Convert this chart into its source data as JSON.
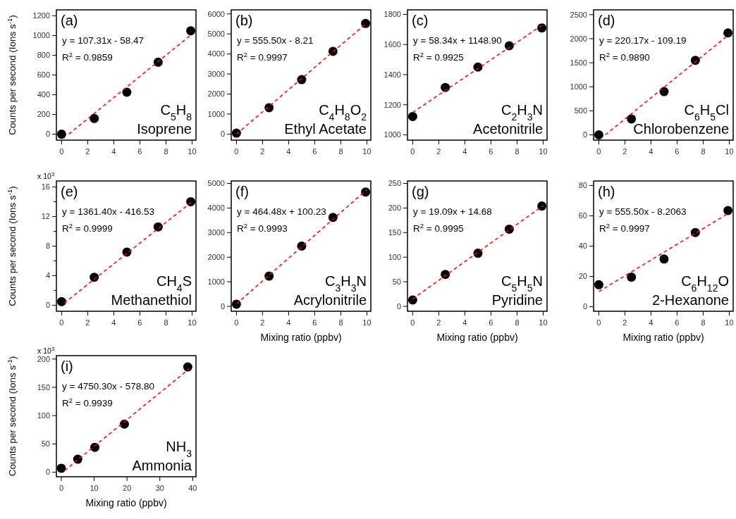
{
  "chart_data": [
    {
      "type": "scatter",
      "ylabel": "Counts per second (Ions s$^{-1}$)",
      "xlim": [
        -0.4,
        10.3
      ],
      "xticks": [
        0,
        2,
        4,
        6,
        8,
        10
      ],
      "ylim": [
        -60,
        1260
      ],
      "yticks": [
        0,
        200,
        400,
        600,
        800,
        1000,
        1200
      ],
      "annotations": [
        "(a)",
        "y = 107.31x - 58.47",
        "R$^{2}$ = 0.9859",
        "C$_{5}$H$_{8}$",
        "Isoprene"
      ],
      "series": [
        {
          "type": "scatter",
          "marker": "circle",
          "color": "#000000",
          "x": [
            0,
            2.5,
            5,
            7.4,
            9.9
          ],
          "values": [
            0,
            160,
            425,
            730,
            1048
          ]
        },
        {
          "type": "line",
          "line_style": "dashed",
          "color": "#ff0000",
          "x": [
            0.55,
            10
          ],
          "values": [
            1,
            1015
          ]
        }
      ]
    },
    {
      "type": "scatter",
      "xlim": [
        -0.4,
        10.3
      ],
      "xticks": [
        0,
        2,
        4,
        6,
        8,
        10
      ],
      "ylim": [
        -300,
        6200
      ],
      "yticks": [
        0,
        1000,
        2000,
        3000,
        4000,
        5000,
        6000
      ],
      "annotations": [
        "(b)",
        "y = 555.50x - 8.21",
        "R$^{2}$ = 0.9997",
        "C$_{4}$H$_{8}$O$_{2}$",
        "Ethyl Acetate"
      ],
      "series": [
        {
          "type": "scatter",
          "marker": "circle",
          "color": "#000000",
          "x": [
            0,
            2.5,
            5,
            7.4,
            9.9
          ],
          "values": [
            50,
            1320,
            2720,
            4130,
            5520
          ]
        },
        {
          "type": "line",
          "line_style": "dashed",
          "color": "#ff0000",
          "x": [
            0,
            10
          ],
          "values": [
            0,
            5550
          ]
        }
      ]
    },
    {
      "type": "scatter",
      "xlim": [
        -0.4,
        10.3
      ],
      "xticks": [
        0,
        2,
        4,
        6,
        8,
        10
      ],
      "ylim": [
        965,
        1830
      ],
      "yticks": [
        1000,
        1200,
        1400,
        1600,
        1800
      ],
      "annotations": [
        "(c)",
        "y = 58.34x + 1148.90",
        "R$^{2}$ = 0.9925",
        "C$_{2}$H$_{3}$N",
        "Acetonitrile"
      ],
      "series": [
        {
          "type": "scatter",
          "marker": "circle",
          "color": "#000000",
          "x": [
            0,
            2.5,
            5,
            7.4,
            9.9
          ],
          "values": [
            1122,
            1315,
            1450,
            1592,
            1710
          ]
        },
        {
          "type": "line",
          "line_style": "dashed",
          "color": "#ff0000",
          "x": [
            0,
            10
          ],
          "values": [
            1149,
            1732
          ]
        }
      ]
    },
    {
      "type": "scatter",
      "xlim": [
        -0.4,
        10.3
      ],
      "xticks": [
        0,
        2,
        4,
        6,
        8,
        10
      ],
      "ylim": [
        -110,
        2600
      ],
      "yticks": [
        0,
        500,
        1000,
        1500,
        2000,
        2500
      ],
      "annotations": [
        "(d)",
        "y = 220.17x - 109.19",
        "R$^{2}$ = 0.9890",
        "C$_{6}$H$_{5}$Cl",
        "Chlorobenzene"
      ],
      "series": [
        {
          "type": "scatter",
          "marker": "circle",
          "color": "#000000",
          "x": [
            0,
            2.5,
            5,
            7.4,
            9.9
          ],
          "values": [
            0,
            330,
            900,
            1550,
            2120
          ]
        },
        {
          "type": "line",
          "line_style": "dashed",
          "color": "#ff0000",
          "x": [
            0.5,
            10
          ],
          "values": [
            0,
            2090
          ]
        }
      ]
    },
    {
      "type": "scatter",
      "ylabel": "Counts per second (Ions s$^{-1}$)",
      "xlim": [
        -0.4,
        10.3
      ],
      "xticks": [
        0,
        2,
        4,
        6,
        8,
        10
      ],
      "ylim": [
        -0.8,
        16.8
      ],
      "yticks": [
        0,
        {
          "value": 2,
          "label": null
        },
        4,
        {
          "value": 6,
          "label": null
        },
        8,
        {
          "value": 10,
          "label": null
        },
        12,
        {
          "value": 14,
          "label": null
        },
        16
      ],
      "annotations": [
        "(e)",
        "y = 1361.40x - 416.53",
        "R$^{2}$ = 0.9999",
        "CH$_{4}$S",
        "Methanethiol",
        "x 10$^{3}$"
      ],
      "series": [
        {
          "type": "scatter",
          "marker": "circle",
          "color": "#000000",
          "x": [
            0,
            2.5,
            5,
            7.4,
            9.9
          ],
          "values": [
            0.5,
            3.8,
            7.2,
            10.6,
            14.0
          ]
        },
        {
          "type": "line",
          "line_style": "dashed",
          "color": "#ff0000",
          "x": [
            0.2,
            10
          ],
          "values": [
            0.3,
            14.0
          ]
        }
      ]
    },
    {
      "type": "scatter",
      "xlabel": "Mixing ratio (ppbv)",
      "xlim": [
        -0.4,
        10.3
      ],
      "xticks": [
        0,
        2,
        4,
        6,
        8,
        10
      ],
      "ylim": [
        -200,
        5100
      ],
      "yticks": [
        0,
        1000,
        2000,
        3000,
        4000,
        5000
      ],
      "annotations": [
        "(f)",
        "y = 464.48x + 100.23",
        "R$^{2}$ = 0.9993",
        "C$_{3}$H$_{3}$N",
        "Acrylonitrile"
      ],
      "series": [
        {
          "type": "scatter",
          "marker": "circle",
          "color": "#000000",
          "x": [
            0,
            2.5,
            5,
            7.4,
            9.9
          ],
          "values": [
            90,
            1230,
            2450,
            3620,
            4650
          ]
        },
        {
          "type": "line",
          "line_style": "dashed",
          "color": "#ff0000",
          "x": [
            0,
            10
          ],
          "values": [
            100,
            4750
          ]
        }
      ]
    },
    {
      "type": "scatter",
      "xlabel": "Mixing ratio (ppbv)",
      "xlim": [
        -0.4,
        10.3
      ],
      "xticks": [
        0,
        2,
        4,
        6,
        8,
        10
      ],
      "ylim": [
        -10,
        255
      ],
      "yticks": [
        0,
        50,
        100,
        150,
        200,
        250
      ],
      "annotations": [
        "(g)",
        "y = 19.09x + 14.68",
        "R$^{2}$ = 0.9995",
        "C$_{5}$H$_{5}$N",
        "Pyridine"
      ],
      "series": [
        {
          "type": "scatter",
          "marker": "circle",
          "color": "#000000",
          "x": [
            0,
            2.5,
            5,
            7.4,
            9.9
          ],
          "values": [
            13,
            65,
            108,
            157,
            204
          ]
        },
        {
          "type": "line",
          "line_style": "dashed",
          "color": "#ff0000",
          "x": [
            0,
            10
          ],
          "values": [
            15,
            205
          ]
        }
      ]
    },
    {
      "type": "scatter",
      "xlabel": "Mixing ratio (ppbv)",
      "xlim": [
        -0.4,
        10.3
      ],
      "xticks": [
        0,
        2,
        4,
        6,
        8,
        10
      ],
      "ylim": [
        -3,
        83
      ],
      "yticks": [
        0,
        20,
        40,
        60,
        80
      ],
      "annotations": [
        "(h)",
        "y = 555.50x - 8.2063",
        "R$^{2}$ = 0.9997",
        "C$_{6}$H$_{12}$O",
        "2-Hexanone"
      ],
      "series": [
        {
          "type": "scatter",
          "marker": "circle",
          "color": "#000000",
          "x": [
            0,
            2.5,
            5,
            7.4,
            9.9
          ],
          "values": [
            14.5,
            19.5,
            31.5,
            49,
            63.5
          ]
        },
        {
          "type": "line",
          "line_style": "dashed",
          "color": "#ff0000",
          "x": [
            0,
            10
          ],
          "values": [
            10,
            62
          ]
        }
      ]
    },
    {
      "type": "scatter",
      "xlabel": "Mixing ratio (ppbv)",
      "ylabel": "Counts per second (Ions s$^{-1}$)",
      "xlim": [
        -1.5,
        41
      ],
      "xticks": [
        0,
        10,
        20,
        30,
        40
      ],
      "ylim": [
        -8,
        206
      ],
      "yticks": [
        0,
        50,
        100,
        150,
        200
      ],
      "annotations": [
        "(i)",
        "y = 4750.30x - 578.80",
        "R$^{2}$ = 0.9939",
        "NH$_{3}$",
        "Ammonia",
        "x 10$^{3}$"
      ],
      "series": [
        {
          "type": "scatter",
          "marker": "circle",
          "color": "#000000",
          "x": [
            0,
            5,
            10.2,
            19.2,
            38.5
          ],
          "values": [
            7,
            23,
            44,
            85,
            186
          ]
        },
        {
          "type": "line",
          "line_style": "dashed",
          "color": "#ff0000",
          "x": [
            1,
            39
          ],
          "values": [
            3,
            183
          ]
        }
      ]
    }
  ]
}
